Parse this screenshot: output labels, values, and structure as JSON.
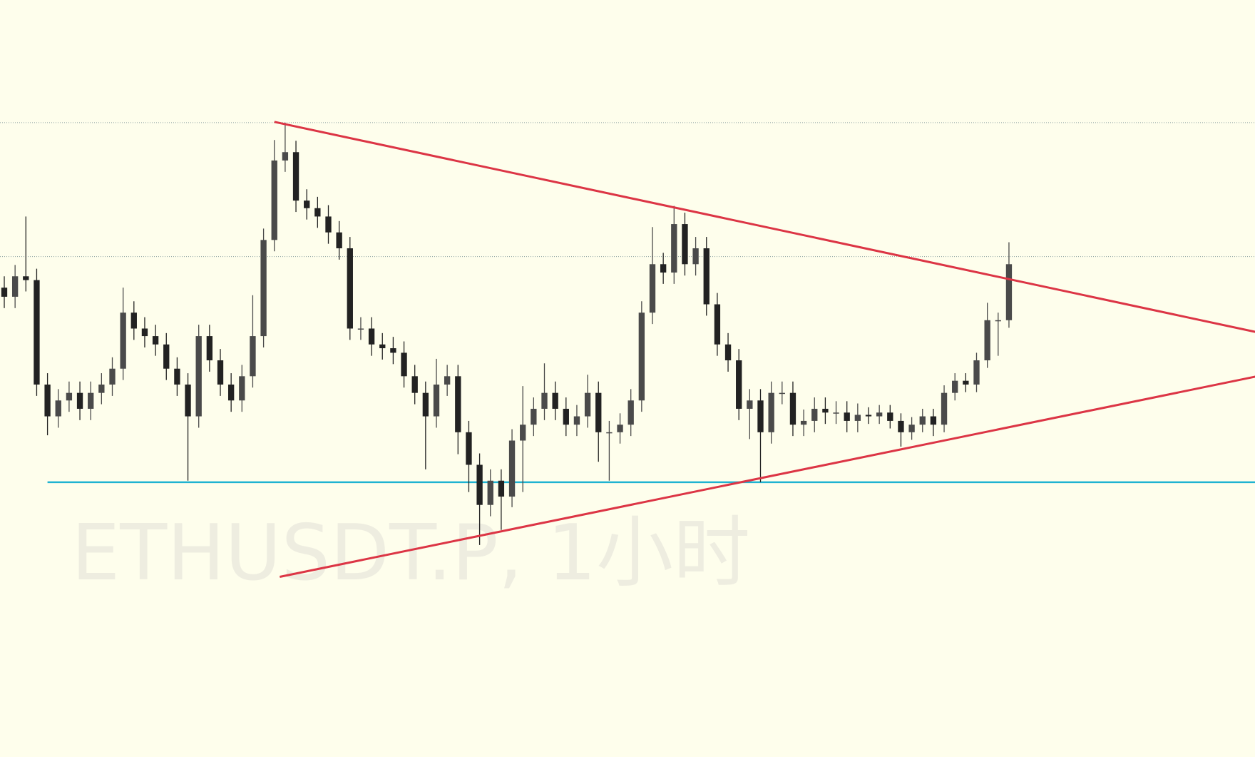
{
  "chart_data": {
    "type": "candlestick",
    "watermark": "ETHUSDT.P, 1小时",
    "ylim": [
      0,
      100
    ],
    "background": "#fefeec",
    "up_color": "#4a4a4a",
    "down_color": "#222222",
    "open": [
      62.0,
      60.8,
      63.5,
      63.0,
      49.2,
      45.0,
      47.1,
      48.1,
      46.0,
      48.1,
      49.2,
      51.3,
      58.7,
      56.6,
      55.6,
      54.5,
      51.3,
      49.2,
      45.0,
      55.6,
      52.4,
      49.2,
      47.1,
      50.3,
      55.6,
      68.3,
      78.8,
      79.9,
      73.5,
      72.5,
      71.4,
      69.3,
      67.2,
      56.6,
      56.6,
      54.5,
      54.0,
      53.4,
      50.3,
      48.1,
      45.0,
      49.2,
      50.3,
      42.9,
      38.6,
      33.3,
      36.5,
      34.4,
      41.8,
      43.9,
      46.0,
      48.1,
      46.0,
      43.9,
      45.0,
      48.1,
      42.9,
      42.9,
      43.9,
      47.1,
      58.7,
      65.1,
      64.0,
      70.4,
      65.1,
      67.2,
      59.8,
      54.5,
      52.4,
      46.0,
      47.1,
      42.9,
      48.1,
      48.1,
      43.9,
      44.4,
      46.0,
      45.5,
      45.5,
      44.4,
      45.2,
      45.0,
      45.5,
      44.4,
      42.9,
      43.9,
      45.0,
      43.9,
      48.1,
      49.7,
      49.2,
      52.4,
      57.7,
      57.7
    ],
    "high": [
      63.5,
      65.0,
      71.4,
      64.5,
      50.7,
      48.6,
      49.6,
      49.6,
      49.6,
      50.7,
      52.8,
      62.0,
      60.2,
      58.1,
      57.1,
      56.0,
      52.8,
      50.7,
      57.1,
      57.1,
      53.9,
      50.7,
      51.8,
      61.0,
      69.8,
      81.5,
      83.8,
      81.4,
      75.0,
      74.0,
      72.9,
      70.8,
      68.7,
      58.1,
      58.1,
      56.0,
      55.5,
      54.9,
      51.8,
      49.6,
      52.6,
      51.8,
      51.8,
      44.4,
      40.1,
      38.0,
      38.0,
      43.3,
      49.0,
      47.5,
      52.0,
      49.6,
      47.5,
      46.5,
      50.5,
      49.6,
      44.4,
      45.4,
      48.6,
      60.2,
      70.0,
      66.6,
      72.8,
      71.9,
      68.7,
      68.7,
      61.3,
      56.0,
      53.9,
      48.6,
      48.6,
      49.6,
      49.6,
      49.6,
      45.9,
      47.5,
      47.5,
      47.0,
      47.0,
      46.7,
      46.2,
      46.5,
      46.5,
      45.4,
      44.9,
      46.0,
      46.0,
      49.1,
      50.7,
      50.7,
      53.4,
      60.0,
      58.7,
      68.0
    ],
    "low": [
      59.3,
      59.3,
      61.5,
      47.7,
      42.5,
      43.5,
      45.6,
      44.5,
      44.5,
      46.6,
      47.7,
      49.8,
      55.1,
      54.1,
      53.0,
      49.8,
      47.7,
      36.5,
      43.5,
      50.9,
      47.7,
      45.6,
      45.6,
      48.8,
      54.1,
      66.8,
      77.3,
      72.0,
      71.0,
      69.9,
      67.8,
      65.7,
      55.1,
      55.1,
      53.0,
      52.5,
      51.9,
      48.8,
      46.6,
      38.0,
      43.5,
      47.7,
      40.0,
      35.0,
      28.0,
      31.8,
      30.0,
      33.0,
      35.0,
      42.4,
      44.5,
      44.5,
      42.4,
      42.4,
      43.5,
      39.0,
      36.5,
      41.4,
      42.4,
      45.6,
      57.2,
      62.5,
      62.5,
      63.6,
      63.6,
      58.3,
      53.0,
      50.9,
      44.5,
      42.0,
      36.3,
      41.4,
      46.6,
      42.4,
      42.4,
      42.9,
      44.0,
      44.0,
      42.9,
      42.9,
      44.0,
      44.0,
      43.4,
      41.0,
      41.9,
      42.9,
      42.4,
      42.9,
      47.1,
      48.2,
      48.2,
      51.4,
      53.0,
      56.7
    ],
    "close": [
      60.8,
      63.5,
      63.0,
      49.2,
      45.0,
      47.1,
      48.1,
      46.0,
      48.1,
      49.2,
      51.3,
      58.7,
      56.6,
      55.6,
      54.5,
      51.3,
      49.2,
      45.0,
      55.6,
      52.4,
      49.2,
      47.1,
      50.3,
      55.6,
      68.3,
      78.8,
      79.9,
      73.5,
      72.5,
      71.4,
      69.3,
      67.2,
      56.6,
      56.6,
      54.5,
      54.0,
      53.4,
      50.3,
      48.1,
      45.0,
      49.2,
      50.3,
      42.9,
      38.6,
      33.3,
      36.5,
      34.4,
      41.8,
      43.9,
      46.0,
      48.1,
      46.0,
      43.9,
      45.0,
      48.1,
      42.9,
      42.9,
      43.9,
      47.1,
      58.7,
      65.1,
      64.0,
      70.4,
      65.1,
      67.2,
      59.8,
      54.5,
      52.4,
      46.0,
      47.1,
      42.9,
      48.1,
      48.1,
      43.9,
      44.4,
      46.0,
      45.5,
      45.5,
      44.4,
      45.2,
      45.0,
      45.5,
      44.4,
      42.9,
      43.9,
      45.0,
      43.9,
      48.1,
      49.7,
      49.2,
      52.4,
      57.7,
      57.7,
      65.1
    ],
    "levels": [
      {
        "value": 83.8,
        "color": "#8aa0a0",
        "style": "dotted"
      },
      {
        "value": 66.1,
        "color": "#8aa0a0",
        "style": "dotted"
      },
      {
        "value": 36.3,
        "color": "#1fb3d1",
        "style": "solid",
        "start_index": 4
      }
    ],
    "trendlines": [
      {
        "color": "#dc3545",
        "start": {
          "index": 25,
          "value": 83.9
        },
        "end": {
          "index": 116,
          "value": 56.1
        }
      },
      {
        "color": "#dc3545",
        "start": {
          "index": 25.5,
          "value": 23.8
        },
        "end": {
          "index": 116,
          "value": 50.3
        }
      }
    ]
  }
}
